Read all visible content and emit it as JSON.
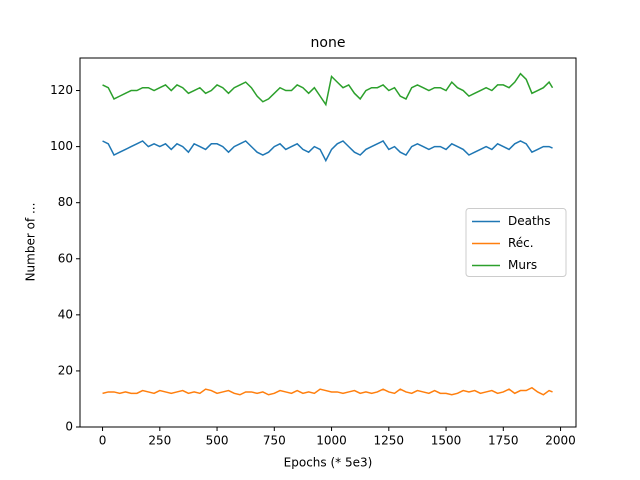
{
  "chart_data": {
    "type": "line",
    "title": "none",
    "x_label": "Epochs (* 5e3)",
    "y_label": "Number of ...",
    "x": [
      0,
      25,
      50,
      75,
      100,
      125,
      150,
      175,
      200,
      225,
      250,
      275,
      300,
      325,
      350,
      375,
      400,
      425,
      450,
      475,
      500,
      525,
      550,
      575,
      600,
      625,
      650,
      675,
      700,
      725,
      750,
      775,
      800,
      825,
      850,
      875,
      900,
      925,
      950,
      975,
      1000,
      1025,
      1050,
      1075,
      1100,
      1125,
      1150,
      1175,
      1200,
      1225,
      1250,
      1275,
      1300,
      1325,
      1350,
      1375,
      1400,
      1425,
      1450,
      1475,
      1500,
      1525,
      1550,
      1575,
      1600,
      1625,
      1650,
      1675,
      1700,
      1725,
      1750,
      1775,
      1800,
      1825,
      1850,
      1875,
      1900,
      1925,
      1950,
      1965
    ],
    "series": [
      {
        "name": "Deaths",
        "color": "#1f77b4",
        "values": [
          102,
          101,
          97,
          98,
          99,
          100,
          101,
          102,
          100,
          101,
          100,
          101,
          99,
          101,
          100,
          98,
          101,
          100,
          99,
          101,
          101,
          100,
          98,
          100,
          101,
          102,
          100,
          98,
          97,
          98,
          100,
          101,
          99,
          100,
          101,
          99,
          98,
          100,
          99,
          95,
          99,
          101,
          102,
          100,
          98,
          97,
          99,
          100,
          101,
          102,
          99,
          100,
          98,
          97,
          100,
          101,
          100,
          99,
          100,
          100,
          99,
          101,
          100,
          99,
          97,
          98,
          99,
          100,
          99,
          101,
          100,
          99,
          101,
          102,
          101,
          98,
          99,
          100,
          100,
          99.5
        ]
      },
      {
        "name": "Réc.",
        "color": "#ff7f0e",
        "values": [
          12,
          12.5,
          12.5,
          12,
          12.5,
          12,
          12,
          13,
          12.5,
          12,
          13,
          12.5,
          12,
          12.5,
          13,
          12,
          12.5,
          12,
          13.5,
          13,
          12,
          12.5,
          13,
          12,
          11.5,
          12.5,
          12.5,
          12,
          12.5,
          11.5,
          12,
          13,
          12.5,
          12,
          13,
          12,
          12.5,
          12,
          13.5,
          13,
          12.5,
          12.5,
          12,
          12.5,
          13,
          12,
          12.5,
          12,
          12.5,
          13.5,
          12.5,
          12,
          13.5,
          12.5,
          12,
          13,
          12.5,
          12,
          13,
          12,
          12,
          11.5,
          12,
          13,
          12.5,
          13,
          12,
          12.5,
          13,
          12,
          12.5,
          13.5,
          12,
          13,
          13,
          14,
          12.5,
          11.5,
          13,
          12.5
        ]
      },
      {
        "name": "Murs",
        "color": "#2ca02c",
        "values": [
          122,
          121,
          117,
          118,
          119,
          120,
          120,
          121,
          121,
          120,
          121,
          122,
          120,
          122,
          121,
          119,
          120,
          121,
          119,
          120,
          122,
          121,
          119,
          121,
          122,
          123,
          121,
          118,
          116,
          117,
          119,
          121,
          120,
          120,
          122,
          121,
          119,
          121,
          118,
          115,
          125,
          123,
          121,
          122,
          119,
          117,
          120,
          121,
          121,
          122,
          120,
          121,
          118,
          117,
          121,
          122,
          121,
          120,
          121,
          121,
          120,
          123,
          121,
          120,
          118,
          119,
          120,
          121,
          120,
          122,
          122,
          121,
          123,
          126,
          124,
          119,
          120,
          121,
          123,
          121
        ]
      }
    ],
    "xlim": [
      -98.45,
      2067.45
    ],
    "xticks": [
      0,
      250,
      500,
      750,
      1000,
      1250,
      1500,
      1750,
      2000
    ],
    "ylim": [
      0,
      131.6
    ],
    "yticks": [
      0,
      20,
      40,
      60,
      80,
      100,
      120
    ],
    "legend": "center right"
  }
}
